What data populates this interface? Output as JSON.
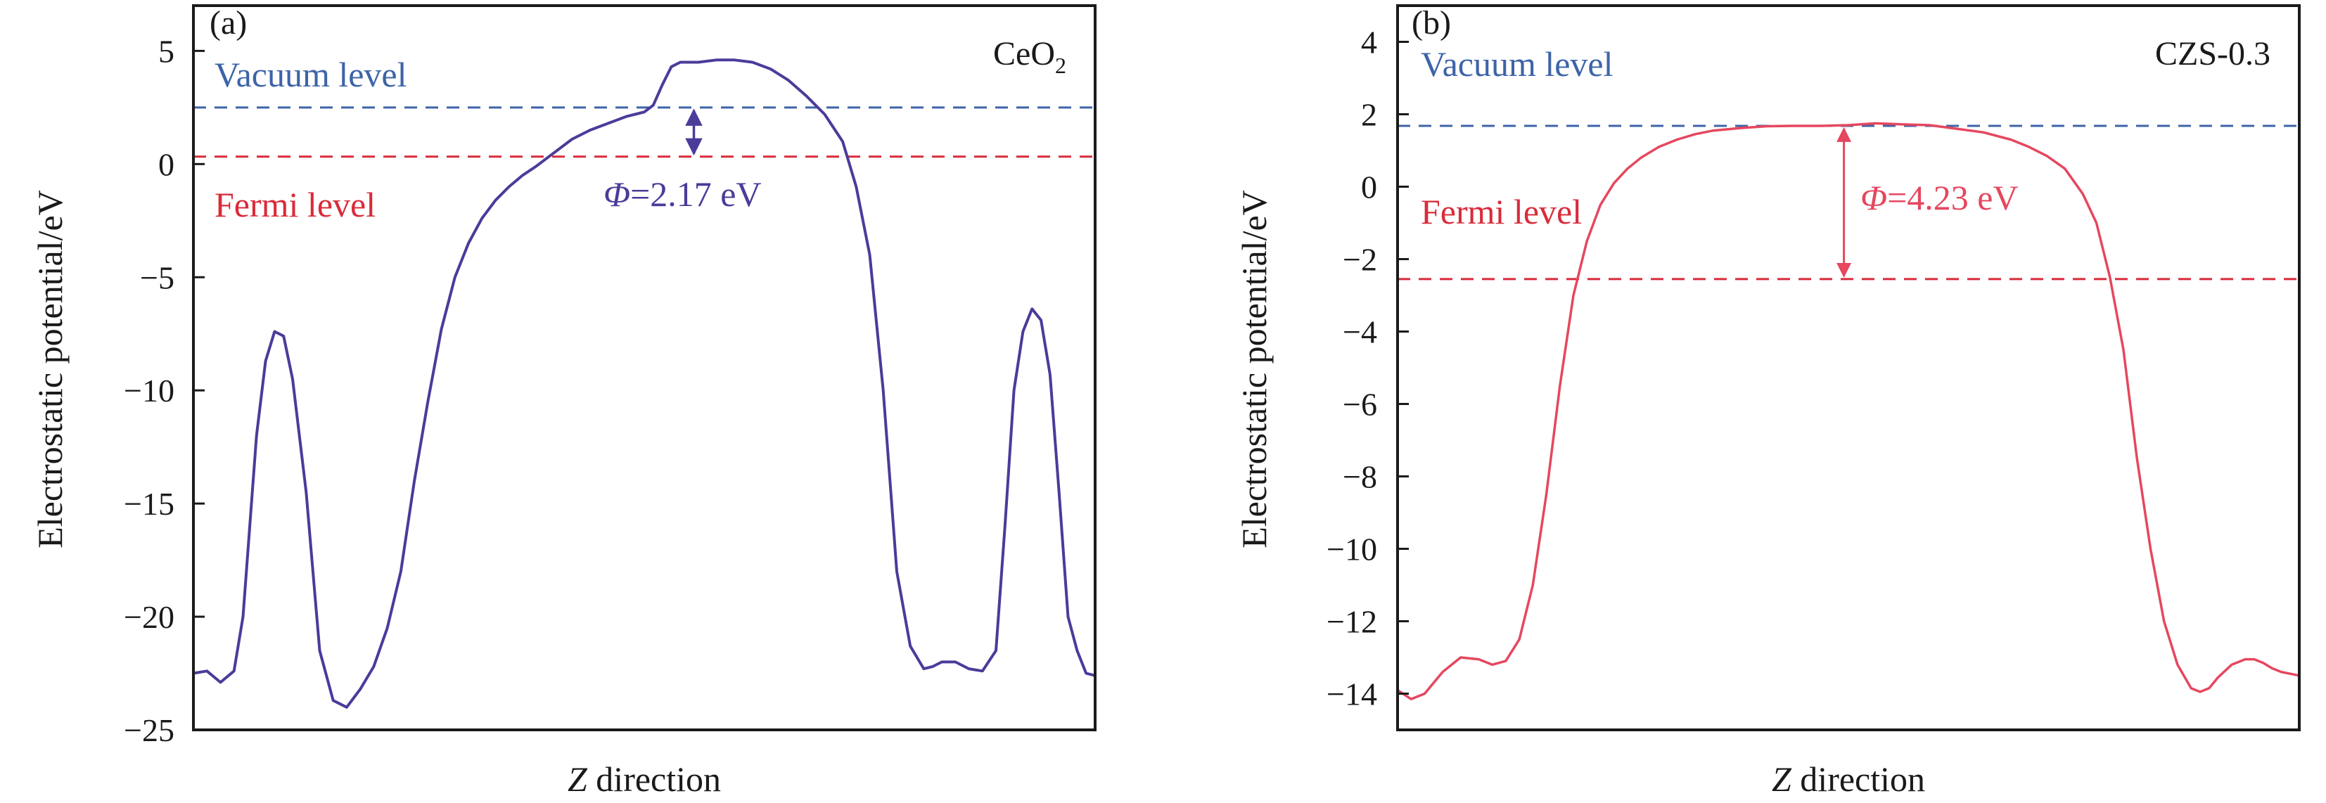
{
  "chart_data": [
    {
      "type": "line",
      "panel_label": "(a)",
      "material": "CeO",
      "material_subscript": "2",
      "xlabel_italic": "Z",
      "xlabel_rest": " direction",
      "ylabel": "Electrostatic potential/eV",
      "ylim": [
        -25,
        7
      ],
      "xlim": [
        0,
        100
      ],
      "yticks": [
        5,
        0,
        -5,
        -10,
        -15,
        -20,
        -25
      ],
      "ytick_labels": [
        "5",
        "0",
        "−5",
        "−10",
        "−15",
        "−20",
        "−25"
      ],
      "vacuum_level": {
        "label": "Vacuum level",
        "value": 2.5,
        "color": "#3d64a8"
      },
      "fermi_level": {
        "label": "Fermi level",
        "value": 0.33,
        "color": "#d92b3a"
      },
      "work_function": {
        "symbol": "Φ",
        "text": "=2.17 eV",
        "x": 55.5
      },
      "curve_color": "#4b3b9a",
      "series": [
        {
          "name": "CeO2",
          "x": [
            0,
            1.5,
            3,
            4.5,
            5.5,
            7,
            8,
            9,
            10,
            11,
            12.5,
            14,
            15.5,
            17,
            18.5,
            20,
            21.5,
            23,
            24.5,
            26,
            27.5,
            29,
            30.5,
            32,
            33.5,
            35,
            36.5,
            38,
            40,
            42,
            44,
            46,
            48,
            49,
            50,
            51,
            52,
            53,
            54,
            56,
            58,
            60,
            62,
            64,
            66,
            68,
            70,
            72,
            73.5,
            75,
            76.5,
            78,
            79.5,
            81,
            82,
            83,
            84.5,
            86,
            87.5,
            89,
            90,
            91,
            92,
            93,
            94,
            95,
            96,
            97,
            98,
            99,
            100
          ],
          "y": [
            -22.5,
            -22.4,
            -22.9,
            -22.4,
            -20.0,
            -12.0,
            -8.7,
            -7.4,
            -7.6,
            -9.5,
            -14.5,
            -21.5,
            -23.7,
            -24.0,
            -23.2,
            -22.2,
            -20.5,
            -18.0,
            -14.0,
            -10.5,
            -7.3,
            -5.0,
            -3.5,
            -2.4,
            -1.6,
            -1.0,
            -0.5,
            -0.1,
            0.5,
            1.1,
            1.5,
            1.8,
            2.1,
            2.2,
            2.3,
            2.6,
            3.5,
            4.3,
            4.5,
            4.5,
            4.6,
            4.6,
            4.5,
            4.2,
            3.7,
            3.0,
            2.2,
            1.0,
            -1.0,
            -4.0,
            -10.0,
            -18.0,
            -21.3,
            -22.3,
            -22.2,
            -22.0,
            -22.0,
            -22.3,
            -22.4,
            -21.5,
            -16.0,
            -10.0,
            -7.4,
            -6.4,
            -6.9,
            -9.3,
            -14.5,
            -20.0,
            -21.5,
            -22.5,
            -22.6
          ]
        }
      ]
    },
    {
      "type": "line",
      "panel_label": "(b)",
      "material": "CZS-0.3",
      "xlabel_italic": "Z",
      "xlabel_rest": " direction",
      "ylabel": "Electrostatic potential/eV",
      "ylim": [
        -15,
        5
      ],
      "xlim": [
        0,
        100
      ],
      "yticks": [
        4,
        2,
        0,
        -2,
        -4,
        -6,
        -8,
        -10,
        -12,
        -14
      ],
      "ytick_labels": [
        "4",
        "2",
        "0",
        "−2",
        "−4",
        "−6",
        "−8",
        "−10",
        "−12",
        "−14"
      ],
      "vacuum_level": {
        "label": "Vacuum level",
        "value": 1.68,
        "color": "#3d64a8"
      },
      "fermi_level": {
        "label": "Fermi level",
        "value": -2.55,
        "color": "#d92b3a"
      },
      "work_function": {
        "symbol": "Φ",
        "text": "=4.23 eV",
        "x": 49.5
      },
      "curve_color": "#e5475f",
      "series": [
        {
          "name": "CZS-0.3",
          "x": [
            0,
            1.5,
            3,
            5,
            7,
            9,
            10.5,
            12,
            13.5,
            15,
            16.5,
            18,
            19.5,
            21,
            22.5,
            24,
            25.5,
            27,
            29,
            31,
            33,
            35,
            38,
            41,
            44,
            47,
            50,
            53,
            56,
            59,
            62,
            65,
            68,
            70,
            72,
            74,
            76,
            77.5,
            79,
            80.5,
            82,
            83.5,
            85,
            86.5,
            88,
            89,
            90,
            91,
            92.5,
            94,
            95,
            96,
            97,
            98,
            99,
            100
          ],
          "y": [
            -13.9,
            -14.15,
            -14.0,
            -13.4,
            -13.0,
            -13.05,
            -13.2,
            -13.1,
            -12.5,
            -11.0,
            -8.5,
            -5.5,
            -3.0,
            -1.5,
            -0.5,
            0.1,
            0.5,
            0.8,
            1.1,
            1.3,
            1.45,
            1.55,
            1.62,
            1.67,
            1.68,
            1.68,
            1.7,
            1.75,
            1.72,
            1.7,
            1.6,
            1.5,
            1.3,
            1.1,
            0.85,
            0.5,
            -0.2,
            -1.0,
            -2.5,
            -4.5,
            -7.5,
            -10.0,
            -12.0,
            -13.2,
            -13.85,
            -13.95,
            -13.85,
            -13.55,
            -13.2,
            -13.05,
            -13.05,
            -13.15,
            -13.3,
            -13.4,
            -13.45,
            -13.5
          ]
        }
      ]
    }
  ]
}
